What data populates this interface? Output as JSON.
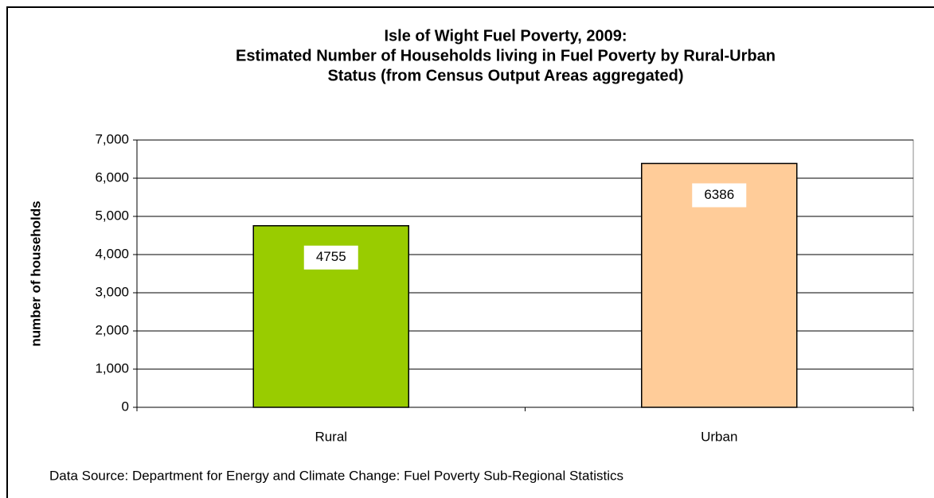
{
  "chart_data": {
    "type": "bar",
    "title": [
      "Isle of Wight Fuel Poverty, 2009:",
      "Estimated Number of Households living in Fuel Poverty by Rural-Urban",
      "Status (from Census Output Areas aggregated)"
    ],
    "ylabel": "number of households",
    "categories": [
      "Rural",
      "Urban"
    ],
    "values": [
      4755,
      6386
    ],
    "colors": [
      "#99cc00",
      "#ffcc99"
    ],
    "ylim": [
      0,
      7000
    ],
    "yticks": [
      0,
      {
        "value": 1000,
        "label": "1,000"
      },
      {
        "value": 2000,
        "label": "2,000"
      },
      {
        "value": 3000,
        "label": "3,000"
      },
      {
        "value": 4000,
        "label": "4,000"
      },
      {
        "value": 5000,
        "label": "5,000"
      },
      {
        "value": 6000,
        "label": "6,000"
      },
      {
        "value": 7000,
        "label": "7,000"
      }
    ],
    "grid": true,
    "source": "Data Source: Department for Energy and Climate Change: Fuel Poverty Sub-Regional Statistics"
  }
}
